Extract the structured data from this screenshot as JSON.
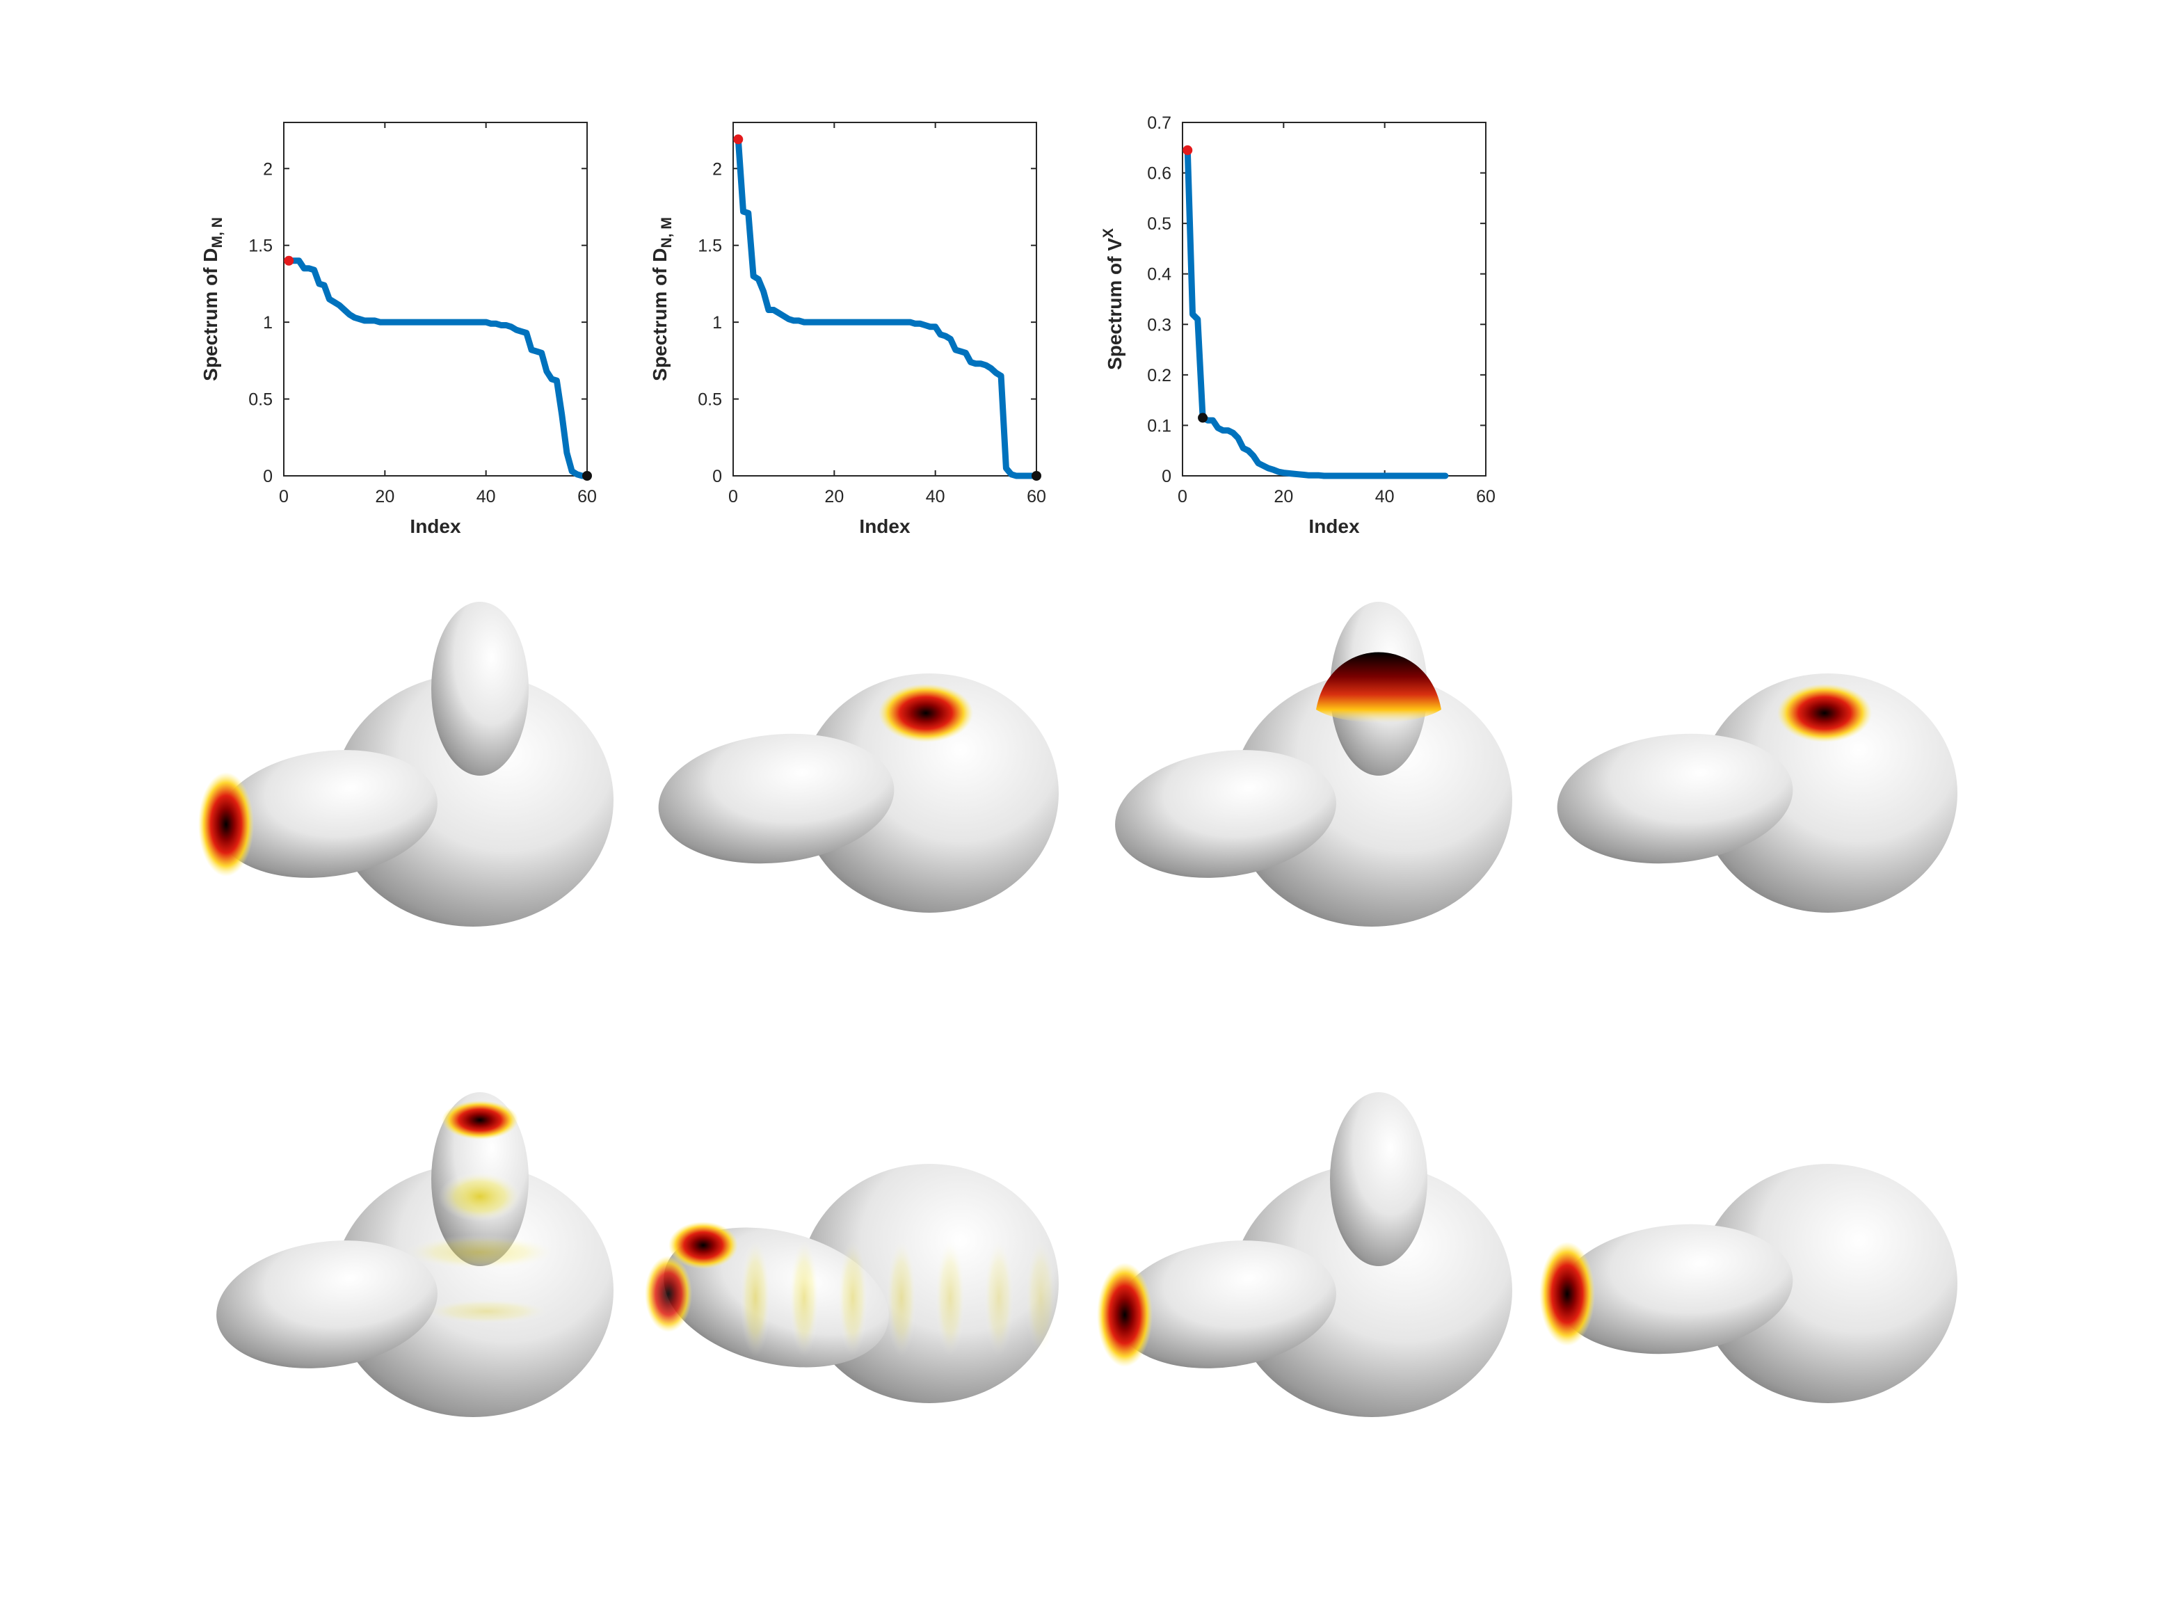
{
  "chart_data": [
    {
      "type": "line",
      "xlabel": "Index",
      "ylabel": {
        "base": "Spectrum of D",
        "sub": "M, N",
        "sup": ""
      },
      "xlim": [
        0,
        60
      ],
      "ylim": [
        0,
        2.3
      ],
      "xticks": [
        0,
        20,
        40,
        60
      ],
      "yticks": [
        0,
        0.5,
        1,
        1.5,
        2
      ],
      "color": "#0072BD",
      "x": [
        1,
        2,
        3,
        4,
        5,
        6,
        7,
        8,
        9,
        10,
        11,
        12,
        13,
        14,
        15,
        16,
        17,
        18,
        19,
        20,
        21,
        22,
        23,
        24,
        25,
        26,
        27,
        28,
        29,
        30,
        31,
        32,
        33,
        34,
        35,
        36,
        37,
        38,
        39,
        40,
        41,
        42,
        43,
        44,
        45,
        46,
        47,
        48,
        49,
        50,
        51,
        52,
        53,
        54,
        55,
        56,
        57,
        58,
        59,
        60
      ],
      "y": [
        1.4,
        1.4,
        1.4,
        1.35,
        1.35,
        1.34,
        1.25,
        1.24,
        1.15,
        1.13,
        1.11,
        1.08,
        1.05,
        1.03,
        1.02,
        1.01,
        1.01,
        1.01,
        1.0,
        1.0,
        1.0,
        1.0,
        1.0,
        1.0,
        1.0,
        1.0,
        1.0,
        1.0,
        1.0,
        1.0,
        1.0,
        1.0,
        1.0,
        1.0,
        1.0,
        1.0,
        1.0,
        1.0,
        1.0,
        1.0,
        0.99,
        0.99,
        0.98,
        0.98,
        0.97,
        0.95,
        0.94,
        0.93,
        0.82,
        0.81,
        0.8,
        0.68,
        0.63,
        0.62,
        0.4,
        0.15,
        0.03,
        0.01,
        0.0,
        0.0
      ],
      "markers": [
        {
          "x": 1,
          "y": 1.4,
          "color": "#E31A1C"
        },
        {
          "x": 60,
          "y": 0.0,
          "color": "#111111"
        }
      ]
    },
    {
      "type": "line",
      "xlabel": "Index",
      "ylabel": {
        "base": "Spectrum of D",
        "sub": "N, M",
        "sup": ""
      },
      "xlim": [
        0,
        60
      ],
      "ylim": [
        0,
        2.3
      ],
      "xticks": [
        0,
        20,
        40,
        60
      ],
      "yticks": [
        0,
        0.5,
        1,
        1.5,
        2
      ],
      "color": "#0072BD",
      "x": [
        1,
        2,
        3,
        4,
        5,
        6,
        7,
        8,
        9,
        10,
        11,
        12,
        13,
        14,
        15,
        16,
        17,
        18,
        19,
        20,
        21,
        22,
        23,
        24,
        25,
        26,
        27,
        28,
        29,
        30,
        31,
        32,
        33,
        34,
        35,
        36,
        37,
        38,
        39,
        40,
        41,
        42,
        43,
        44,
        45,
        46,
        47,
        48,
        49,
        50,
        51,
        52,
        53,
        54,
        55,
        56,
        57,
        58,
        59,
        60
      ],
      "y": [
        2.19,
        1.72,
        1.71,
        1.3,
        1.28,
        1.2,
        1.08,
        1.08,
        1.06,
        1.04,
        1.02,
        1.01,
        1.01,
        1.0,
        1.0,
        1.0,
        1.0,
        1.0,
        1.0,
        1.0,
        1.0,
        1.0,
        1.0,
        1.0,
        1.0,
        1.0,
        1.0,
        1.0,
        1.0,
        1.0,
        1.0,
        1.0,
        1.0,
        1.0,
        1.0,
        0.99,
        0.99,
        0.98,
        0.97,
        0.97,
        0.92,
        0.91,
        0.89,
        0.82,
        0.81,
        0.8,
        0.74,
        0.73,
        0.73,
        0.72,
        0.7,
        0.67,
        0.65,
        0.05,
        0.01,
        0.0,
        0.0,
        0.0,
        0.0,
        0.0
      ],
      "markers": [
        {
          "x": 1,
          "y": 2.19,
          "color": "#E31A1C"
        },
        {
          "x": 60,
          "y": 0.0,
          "color": "#111111"
        }
      ]
    },
    {
      "type": "line",
      "xlabel": "Index",
      "ylabel": {
        "base": "Spectrum of V",
        "sub": "",
        "sup": "X"
      },
      "xlim": [
        0,
        60
      ],
      "ylim": [
        0,
        0.7
      ],
      "xticks": [
        0,
        20,
        40,
        60
      ],
      "yticks": [
        0,
        0.1,
        0.2,
        0.3,
        0.4,
        0.5,
        0.6,
        0.7
      ],
      "color": "#0072BD",
      "x": [
        1,
        2,
        3,
        4,
        5,
        6,
        7,
        8,
        9,
        10,
        11,
        12,
        13,
        14,
        15,
        16,
        17,
        18,
        19,
        20,
        21,
        22,
        23,
        24,
        25,
        26,
        27,
        28,
        29,
        30,
        31,
        32,
        33,
        34,
        35,
        36,
        37,
        38,
        39,
        40,
        41,
        42,
        43,
        44,
        45,
        46,
        47,
        48,
        49,
        50,
        51,
        52
      ],
      "y": [
        0.645,
        0.32,
        0.31,
        0.115,
        0.11,
        0.11,
        0.095,
        0.09,
        0.09,
        0.085,
        0.075,
        0.055,
        0.05,
        0.04,
        0.025,
        0.02,
        0.015,
        0.012,
        0.008,
        0.006,
        0.005,
        0.004,
        0.003,
        0.002,
        0.001,
        0.001,
        0.001,
        0.0,
        0.0,
        0.0,
        0.0,
        0.0,
        0.0,
        0.0,
        0.0,
        0.0,
        0.0,
        0.0,
        0.0,
        0.0,
        0.0,
        0.0,
        0.0,
        0.0,
        0.0,
        0.0,
        0.0,
        0.0,
        0.0,
        0.0,
        0.0,
        0.0
      ],
      "markers": [
        {
          "x": 1,
          "y": 0.645,
          "color": "#E31A1C"
        },
        {
          "x": 4,
          "y": 0.115,
          "color": "#111111"
        }
      ]
    }
  ],
  "shapes": [
    {
      "row": 0,
      "col": 0,
      "form": "peanut-bump",
      "highlight": "left-tip"
    },
    {
      "row": 0,
      "col": 1,
      "form": "peanut",
      "highlight": "top-ring"
    },
    {
      "row": 0,
      "col": 2,
      "form": "peanut-bump",
      "highlight": "top-cap"
    },
    {
      "row": 0,
      "col": 3,
      "form": "peanut",
      "highlight": "top-ring"
    },
    {
      "row": 1,
      "col": 0,
      "form": "peanut-bump",
      "highlight": "top-multi"
    },
    {
      "row": 1,
      "col": 1,
      "form": "peanut-tilt",
      "highlight": "left-multi"
    },
    {
      "row": 1,
      "col": 2,
      "form": "peanut-bump",
      "highlight": "left-tip"
    },
    {
      "row": 1,
      "col": 3,
      "form": "peanut",
      "highlight": "left-tip"
    }
  ]
}
